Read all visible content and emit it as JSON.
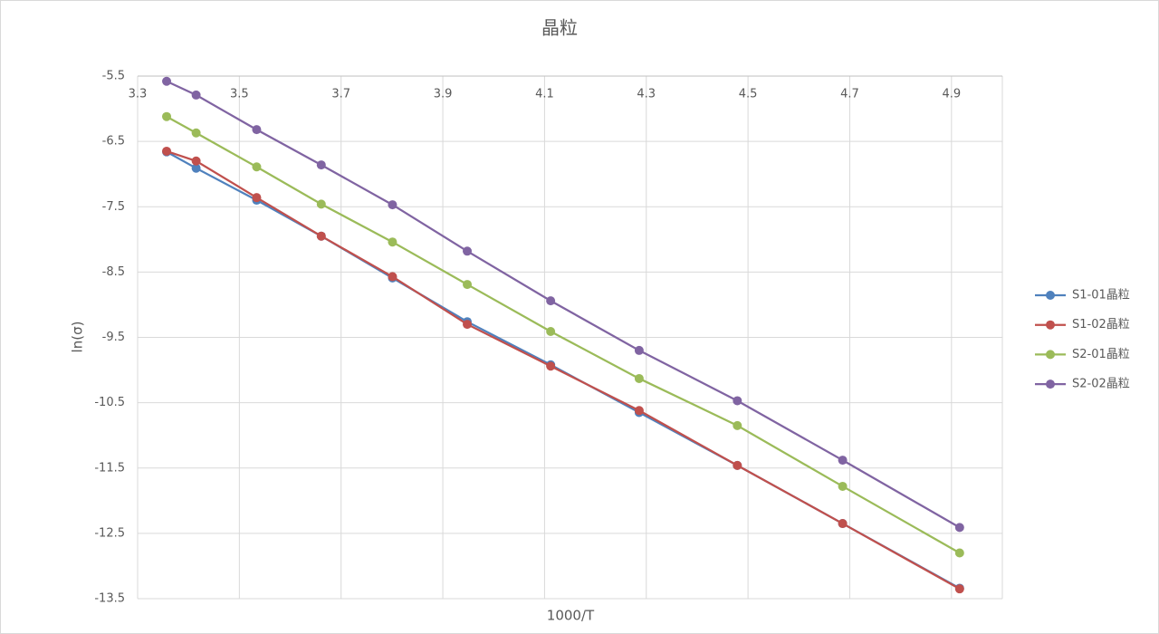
{
  "chart_data": {
    "type": "line",
    "title": "晶粒",
    "x_label": "1000/T",
    "y_label": "ln(σ)",
    "x": [
      3.357,
      3.415,
      3.534,
      3.661,
      3.801,
      3.948,
      4.112,
      4.286,
      4.479,
      4.686,
      4.916
    ],
    "series": [
      {
        "name": "S1-01晶粒",
        "color": "#4f81bd",
        "values": [
          -6.66,
          -6.91,
          -7.4,
          -7.95,
          -8.59,
          -9.26,
          -9.92,
          -10.65,
          -11.46,
          -12.35,
          -13.34
        ]
      },
      {
        "name": "S1-02晶粒",
        "color": "#c0504d",
        "values": [
          -6.65,
          -6.8,
          -7.36,
          -7.95,
          -8.57,
          -9.3,
          -9.94,
          -10.62,
          -11.46,
          -12.35,
          -13.35
        ]
      },
      {
        "name": "S2-01晶粒",
        "color": "#9bbb59",
        "values": [
          -6.12,
          -6.37,
          -6.89,
          -7.46,
          -8.04,
          -8.69,
          -9.41,
          -10.13,
          -10.85,
          -11.78,
          -12.8
        ]
      },
      {
        "name": "S2-02晶粒",
        "color": "#8064a2",
        "values": [
          -5.58,
          -5.79,
          -6.32,
          -6.86,
          -7.47,
          -8.18,
          -8.94,
          -9.7,
          -10.47,
          -11.38,
          -12.41
        ]
      }
    ],
    "xlim": [
      3.3,
      5.0
    ],
    "xticks": [
      3.3,
      3.5,
      3.7,
      3.9,
      4.1,
      4.3,
      4.5,
      4.7,
      4.9
    ],
    "ylim": [
      -13.5,
      -5.5
    ],
    "yticks": [
      -5.5,
      -6.5,
      -7.5,
      -8.5,
      -9.5,
      -10.5,
      -11.5,
      -12.5,
      -13.5
    ],
    "grid": true,
    "legend": "right"
  }
}
